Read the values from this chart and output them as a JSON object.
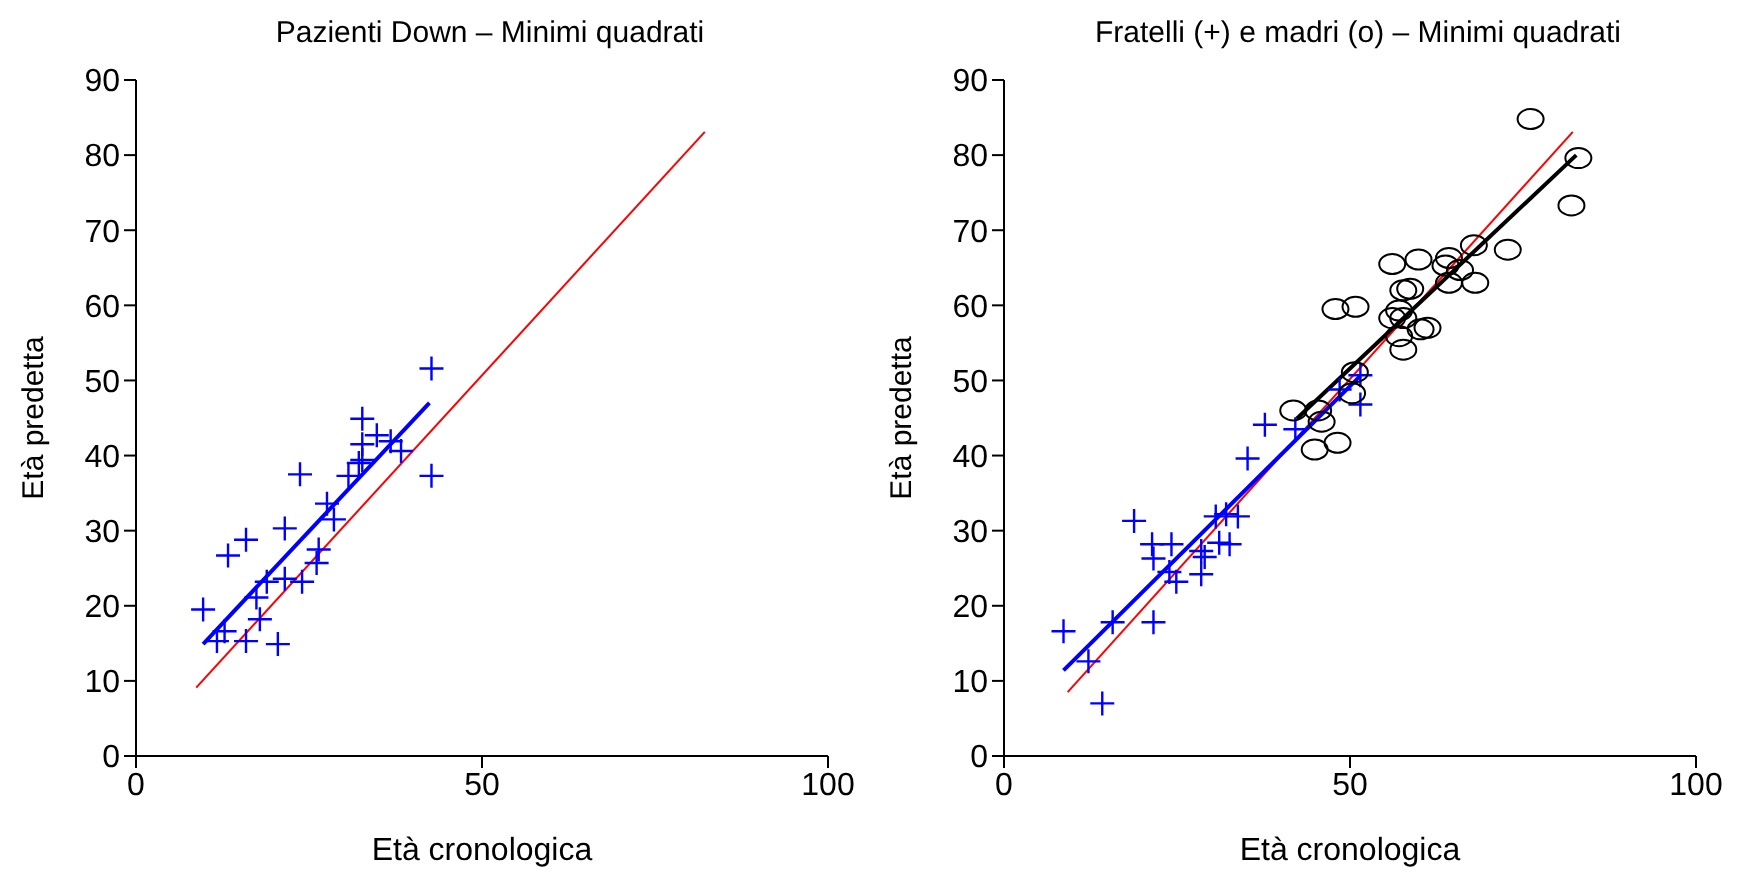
{
  "chart_data": [
    {
      "type": "scatter",
      "title": "Pazienti Down – Minimi quadrati",
      "xlabel": "Età cronologica",
      "ylabel": "Età predetta",
      "xlim": [
        0,
        100
      ],
      "xticks": [
        0,
        50,
        100
      ],
      "ylim": [
        0,
        90
      ],
      "yticks": [
        0,
        10,
        20,
        30,
        40,
        50,
        60,
        70,
        80,
        90
      ],
      "grid": false,
      "series": [
        {
          "marker": "cross",
          "color": "#0000ff",
          "x": [
            9.7,
            42.7,
            32.7,
            34.8,
            36.8,
            38.3,
            32.7,
            32.2,
            32.7,
            30.7,
            23.7,
            42.7,
            27.6,
            28.6,
            21.5,
            15.9,
            13.3,
            26.4,
            26.1,
            18.9,
            21.5,
            24,
            17.4,
            17.9,
            12.8,
            11.7,
            15.9,
            20.5
          ],
          "values": [
            19.5,
            51.6,
            44.9,
            42.7,
            41.9,
            40.6,
            41.5,
            39,
            39.4,
            37.3,
            37.5,
            37.3,
            33.6,
            31.5,
            30.3,
            28.8,
            26.7,
            27.5,
            25.7,
            23.2,
            23.6,
            23.2,
            21.1,
            18.2,
            16.6,
            15.3,
            15.3,
            14.9
          ]
        },
        {
          "type": "line",
          "color": "#ff0000",
          "x": [
            8.7,
            82.2
          ],
          "values": [
            9.1,
            83.1
          ]
        },
        {
          "type": "line",
          "color": "#0000ff",
          "x": [
            9.7,
            42.4
          ],
          "values": [
            14.9,
            47
          ]
        }
      ]
    },
    {
      "type": "scatter",
      "title": "Fratelli (+) e madri (o) – Minimi quadrati",
      "xlabel": "Età cronologica",
      "ylabel": "Età predetta",
      "xlim": [
        0,
        100
      ],
      "xticks": [
        0,
        50,
        100
      ],
      "ylim": [
        0,
        90
      ],
      "yticks": [
        0,
        10,
        20,
        30,
        40,
        50,
        60,
        70,
        80,
        90
      ],
      "grid": false,
      "series": [
        {
          "marker": "cross",
          "color": "#0000ff",
          "x": [
            8.6,
            12.2,
            14.2,
            18.8,
            21.4,
            24.2,
            21.6,
            15.7,
            21.6,
            23.9,
            24.9,
            28.5,
            29,
            28.5,
            30.6,
            32.1,
            33.8,
            32.6,
            31.1,
            37.7,
            35.2,
            42.1,
            51.5,
            51.5,
            48.5
          ],
          "values": [
            16.6,
            12.6,
            7,
            31.3,
            28.2,
            28.2,
            26.3,
            17.8,
            17.8,
            24.5,
            23.2,
            24.2,
            26.5,
            27.3,
            31.9,
            32.2,
            31.9,
            28.2,
            28.4,
            44.1,
            39.6,
            43.5,
            50.7,
            46.8,
            48.8
          ]
        },
        {
          "marker": "circle",
          "color": "#000000",
          "x": [
            76.1,
            83,
            82,
            67.9,
            72.8,
            56.1,
            59.9,
            64.3,
            63.8,
            65.9,
            64.3,
            68.1,
            57.7,
            58.7,
            47.9,
            50.8,
            57.1,
            56.1,
            57.7,
            60.2,
            61.2,
            57.1,
            57.7,
            50.7,
            50.3,
            41.8,
            45.4,
            45.9,
            44.9,
            48.2
          ],
          "values": [
            84.8,
            79.6,
            73.3,
            68,
            67.4,
            65.5,
            66.1,
            66.3,
            65.3,
            64.7,
            63,
            63,
            62,
            62.2,
            59.5,
            59.8,
            59.3,
            58.3,
            58.3,
            56.8,
            57,
            55.9,
            54.1,
            51.1,
            48.3,
            46,
            46,
            44.5,
            40.8,
            41.7
          ]
        },
        {
          "type": "line",
          "color": "#ff0000",
          "x": [
            9.2,
            82.2
          ],
          "values": [
            8.5,
            83.1
          ]
        },
        {
          "type": "line",
          "color": "#0000ff",
          "x": [
            8.6,
            51.5
          ],
          "values": [
            11.4,
            50.6
          ]
        },
        {
          "type": "line",
          "color": "#000000",
          "x": [
            42.3,
            82.7
          ],
          "values": [
            44.9,
            80
          ]
        }
      ]
    }
  ]
}
